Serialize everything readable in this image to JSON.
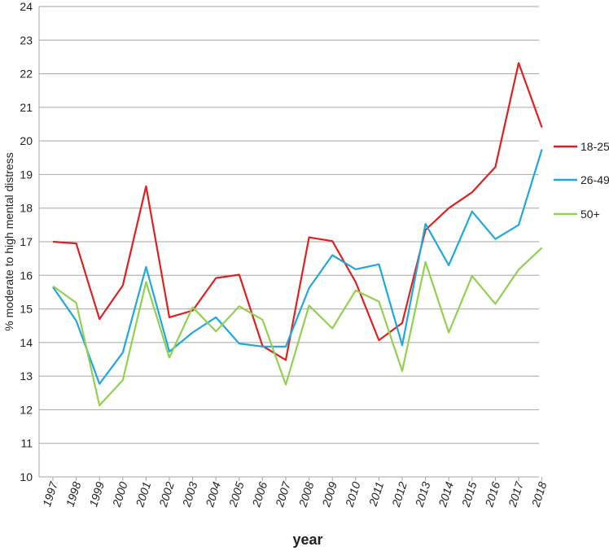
{
  "chart_data": {
    "type": "line",
    "xlabel": "year",
    "ylabel": "% moderate to high mental distress",
    "ylim": [
      10,
      24
    ],
    "yticks": [
      10,
      11,
      12,
      13,
      14,
      15,
      16,
      17,
      18,
      19,
      20,
      21,
      22,
      23,
      24
    ],
    "grid": "horizontal",
    "legend_position": "right",
    "categories": [
      "1997",
      "1998",
      "1999",
      "2000",
      "2001",
      "2002",
      "2003",
      "2004",
      "2005",
      "2006",
      "2007",
      "2008",
      "2009",
      "2010",
      "2011",
      "2012",
      "2013",
      "2014",
      "2015",
      "2016",
      "2017",
      "2018"
    ],
    "series": [
      {
        "name": "18-25",
        "color": "#e02020",
        "values": [
          17.0,
          16.95,
          14.7,
          15.7,
          18.65,
          14.75,
          14.95,
          15.92,
          16.02,
          13.9,
          13.48,
          17.13,
          17.02,
          15.8,
          14.07,
          14.58,
          17.35,
          18.0,
          18.47,
          19.22,
          22.32,
          20.4
        ]
      },
      {
        "name": "26-49",
        "color": "#1fa8dc",
        "values": [
          15.65,
          14.65,
          12.77,
          13.7,
          16.25,
          13.73,
          14.3,
          14.75,
          13.97,
          13.88,
          13.88,
          15.62,
          16.6,
          16.18,
          16.33,
          13.92,
          17.53,
          16.3,
          17.9,
          17.08,
          17.5,
          19.75
        ]
      },
      {
        "name": "50+",
        "color": "#92d050",
        "values": [
          15.68,
          15.18,
          12.13,
          12.88,
          15.8,
          13.55,
          15.05,
          14.33,
          15.08,
          14.68,
          12.75,
          15.1,
          14.42,
          15.55,
          15.22,
          13.15,
          16.4,
          14.3,
          15.98,
          15.15,
          16.17,
          16.82
        ]
      }
    ]
  }
}
